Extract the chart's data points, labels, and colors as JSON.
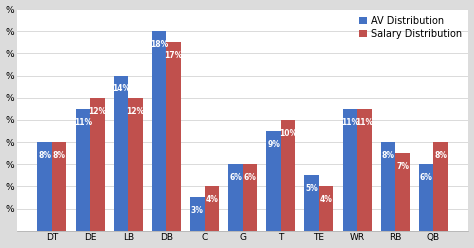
{
  "categories": [
    "DT",
    "DE",
    "LB",
    "DB",
    "C",
    "G",
    "T",
    "TE",
    "WR",
    "RB",
    "QB"
  ],
  "av_distribution": [
    8,
    11,
    14,
    18,
    3,
    6,
    9,
    5,
    11,
    8,
    6
  ],
  "salary_distribution": [
    8,
    12,
    12,
    17,
    4,
    6,
    10,
    4,
    11,
    7,
    8
  ],
  "av_color": "#4472C4",
  "salary_color": "#C0504D",
  "bar_width": 0.38,
  "ylim": [
    0,
    20
  ],
  "ytick_values": [
    0,
    2,
    4,
    6,
    8,
    10,
    12,
    14,
    16,
    18,
    20
  ],
  "ytick_labels": [
    "",
    "",
    "",
    "",
    "",
    "",
    "",
    "",
    "",
    "",
    ""
  ],
  "legend_labels": [
    "AV Distribution",
    "Salary Distribution"
  ],
  "plot_bg_color": "#FFFFFF",
  "fig_bg_color": "#DCDCDC",
  "label_fontsize": 5.5,
  "tick_fontsize": 6.5,
  "legend_fontsize": 7
}
